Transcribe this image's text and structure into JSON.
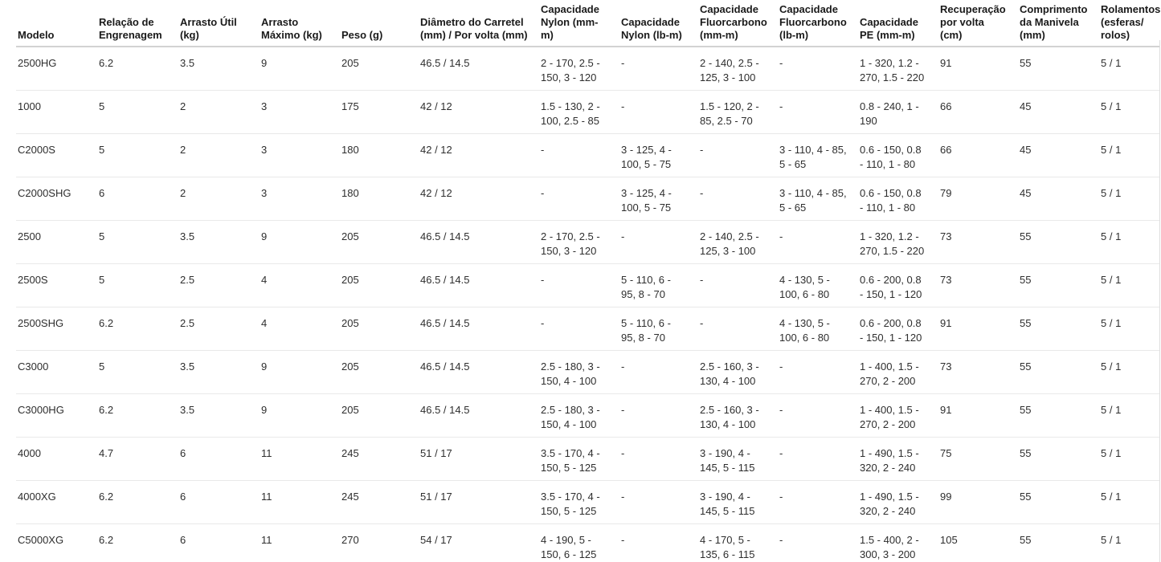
{
  "colors": {
    "header_text": "#1a1a1a",
    "body_text": "#2e2e2e",
    "header_rule": "#d2d2d2",
    "row_divider": "#e9e9e9"
  },
  "table": {
    "columns": [
      {
        "id": "modelo",
        "label": "Modelo"
      },
      {
        "id": "relacao-engrenagem",
        "label": "Relação de Engrenagem"
      },
      {
        "id": "arrasto-util",
        "label": "Arrasto Útil (kg)"
      },
      {
        "id": "arrasto-maximo",
        "label": "Arrasto Máximo (kg)"
      },
      {
        "id": "peso",
        "label": "Peso (g)"
      },
      {
        "id": "diametro-carretel",
        "label": "Diâmetro do Carretel (mm) / Por volta (mm)"
      },
      {
        "id": "cap-nylon-mm",
        "label": "Capacidade Nylon (mm-m)"
      },
      {
        "id": "cap-nylon-lb",
        "label": "Capacidade Nylon (lb-m)"
      },
      {
        "id": "cap-fluor-mm",
        "label": "Capacidade Fluorcarbono (mm-m)"
      },
      {
        "id": "cap-fluor-lb",
        "label": "Capacidade Fluorcarbono (lb-m)"
      },
      {
        "id": "cap-pe",
        "label": "Capacidade PE (mm-m)"
      },
      {
        "id": "recuperacao-volta",
        "label": "Recuperação por volta (cm)"
      },
      {
        "id": "comprimento-manivela",
        "label": "Comprimento da Manivela (mm)"
      },
      {
        "id": "rolamentos",
        "label": "Rolamentos (esferas/ rolos)"
      }
    ],
    "rows": [
      [
        "2500HG",
        "6.2",
        "3.5",
        "9",
        "205",
        "46.5 / 14.5",
        "2 - 170, 2.5 - 150, 3 - 120",
        "-",
        "2 - 140, 2.5 - 125, 3 - 100",
        "-",
        "1 - 320, 1.2 - 270, 1.5 - 220",
        "91",
        "55",
        "5 / 1"
      ],
      [
        "1000",
        "5",
        "2",
        "3",
        "175",
        "42 / 12",
        "1.5 - 130, 2 - 100, 2.5 - 85",
        "-",
        "1.5 - 120, 2 - 85, 2.5 - 70",
        "-",
        "0.8 - 240, 1 - 190",
        "66",
        "45",
        "5 / 1"
      ],
      [
        "C2000S",
        "5",
        "2",
        "3",
        "180",
        "42 / 12",
        "-",
        "3 - 125, 4 - 100, 5 - 75",
        "-",
        "3 - 110, 4 - 85, 5 - 65",
        "0.6 - 150, 0.8 - 110, 1 - 80",
        "66",
        "45",
        "5 / 1"
      ],
      [
        "C2000SHG",
        "6",
        "2",
        "3",
        "180",
        "42 / 12",
        "-",
        "3 - 125, 4 - 100, 5 - 75",
        "-",
        "3 - 110, 4 - 85, 5 - 65",
        "0.6 - 150, 0.8 - 110, 1 - 80",
        "79",
        "45",
        "5 / 1"
      ],
      [
        "2500",
        "5",
        "3.5",
        "9",
        "205",
        "46.5 / 14.5",
        "2 - 170, 2.5 - 150, 3 - 120",
        "-",
        "2 - 140, 2.5 - 125, 3 - 100",
        "-",
        "1 - 320, 1.2 - 270, 1.5 - 220",
        "73",
        "55",
        "5 / 1"
      ],
      [
        "2500S",
        "5",
        "2.5",
        "4",
        "205",
        "46.5 / 14.5",
        "-",
        "5 - 110, 6 - 95, 8 - 70",
        "-",
        "4 - 130, 5 - 100, 6 - 80",
        "0.6 - 200, 0.8 - 150, 1 - 120",
        "73",
        "55",
        "5 / 1"
      ],
      [
        "2500SHG",
        "6.2",
        "2.5",
        "4",
        "205",
        "46.5 / 14.5",
        "-",
        "5 - 110, 6 - 95, 8 - 70",
        "-",
        "4 - 130, 5 - 100, 6 - 80",
        "0.6 - 200, 0.8 - 150, 1 - 120",
        "91",
        "55",
        "5 / 1"
      ],
      [
        "C3000",
        "5",
        "3.5",
        "9",
        "205",
        "46.5 / 14.5",
        "2.5 - 180, 3 - 150, 4 - 100",
        "-",
        "2.5 - 160, 3 - 130, 4 - 100",
        "-",
        "1 - 400, 1.5 - 270, 2 - 200",
        "73",
        "55",
        "5 / 1"
      ],
      [
        "C3000HG",
        "6.2",
        "3.5",
        "9",
        "205",
        "46.5 / 14.5",
        "2.5 - 180, 3 - 150, 4 - 100",
        "-",
        "2.5 - 160, 3 - 130, 4 - 100",
        "-",
        "1 - 400, 1.5 - 270, 2 - 200",
        "91",
        "55",
        "5 / 1"
      ],
      [
        "4000",
        "4.7",
        "6",
        "11",
        "245",
        "51 / 17",
        "3.5 - 170, 4 - 150, 5 - 125",
        "-",
        "3 - 190, 4 - 145, 5 - 115",
        "-",
        "1 - 490, 1.5 - 320, 2 - 240",
        "75",
        "55",
        "5 / 1"
      ],
      [
        "4000XG",
        "6.2",
        "6",
        "11",
        "245",
        "51 / 17",
        "3.5 - 170, 4 - 150, 5 - 125",
        "-",
        "3 - 190, 4 - 145, 5 - 115",
        "-",
        "1 - 490, 1.5 - 320, 2 - 240",
        "99",
        "55",
        "5 / 1"
      ],
      [
        "C5000XG",
        "6.2",
        "6",
        "11",
        "270",
        "54 / 17",
        "4 - 190, 5 - 150, 6 - 125",
        "-",
        "4 - 170, 5 - 135, 6 - 115",
        "-",
        "1.5 - 400, 2 - 300, 3 - 200",
        "105",
        "55",
        "5 / 1"
      ]
    ]
  }
}
